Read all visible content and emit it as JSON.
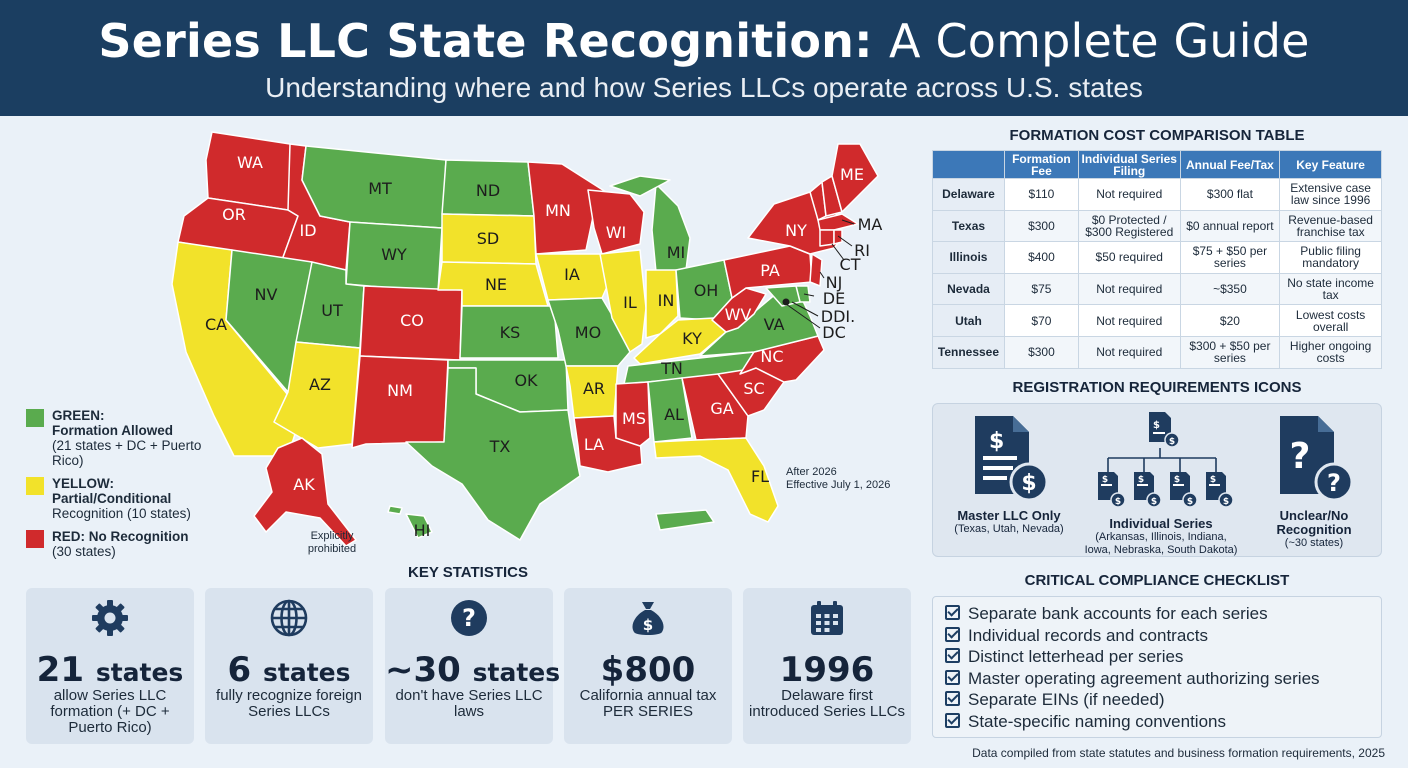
{
  "header": {
    "title_bold": "Series LLC State Recognition:",
    "title_light": "A Complete Guide",
    "subtitle": "Understanding where and how Series LLCs operate across U.S. states"
  },
  "colors": {
    "green": "#5aab4e",
    "yellow": "#f2e22a",
    "red": "#d02a2c",
    "header": "#1b3e61",
    "accent": "#3c78b8"
  },
  "map": {
    "labels": {
      "WA": "WA",
      "OR": "OR",
      "CA": "CA",
      "ID": "ID",
      "NV": "NV",
      "MT": "MT",
      "WY": "WY",
      "UT": "UT",
      "AZ": "AZ",
      "CO": "CO",
      "NM": "NM",
      "ND": "ND",
      "SD": "SD",
      "NE": "NE",
      "KS": "KS",
      "OK": "OK",
      "TX": "TX",
      "MN": "MN",
      "IA": "IA",
      "MO": "MO",
      "AR": "AR",
      "LA": "LA",
      "WI": "WI",
      "IL": "IL",
      "MI": "MI",
      "IN": "IN",
      "OH": "OH",
      "KY": "KY",
      "TN": "TN",
      "MS": "MS",
      "AL": "AL",
      "GA": "GA",
      "FL": "FL",
      "SC": "SC",
      "NC": "NC",
      "VA": "VA",
      "WV": "WV",
      "PA": "PA",
      "NY": "NY",
      "ME": "ME",
      "MA": "MA",
      "RI": "RI",
      "CT": "CT",
      "NJ": "NJ",
      "DE": "DE",
      "DDI": "DDI.",
      "DC": "DC",
      "AK": "AK",
      "HI": "HI"
    },
    "note_ak": "Explicitly prohibited",
    "note_fl_1": "After 2026",
    "note_fl_2": "Effective July 1, 2026"
  },
  "legend": [
    {
      "title": "GREEN:",
      "title2": "Formation Allowed",
      "desc": "(21 states + DC + Puerto Rico)",
      "color": "#5aab4e"
    },
    {
      "title": "YELLOW:",
      "title2": "Partial/Conditional",
      "desc": "Recognition (10 states)",
      "color": "#f2e22a"
    },
    {
      "title": "RED: No Recognition",
      "title2": "",
      "desc": "(30 states)",
      "color": "#d02a2c"
    }
  ],
  "stats": {
    "title": "KEY STATISTICS",
    "items": [
      {
        "big": "21",
        "unit": "states",
        "desc": "allow Series LLC formation (+ DC + Puerto Rico)",
        "icon": "gear-icon"
      },
      {
        "big": "6",
        "unit": "states",
        "desc": "fully recognize foreign Series LLCs",
        "icon": "globe-icon"
      },
      {
        "big": "~30",
        "unit": "states",
        "desc": "don't have Series LLC laws",
        "icon": "question-icon"
      },
      {
        "big": "$800",
        "unit": "",
        "desc": "California annual tax PER SERIES",
        "icon": "money-bag-icon"
      },
      {
        "big": "1996",
        "unit": "",
        "desc": "Delaware first introduced Series LLCs",
        "icon": "calendar-icon"
      }
    ]
  },
  "cost_table": {
    "title": "FORMATION COST COMPARISON TABLE",
    "headers": [
      "",
      "Formation Fee",
      "Individual Series Filing",
      "Annual Fee/Tax",
      "Key Feature"
    ],
    "rows": [
      [
        "Delaware",
        "$110",
        "Not required",
        "$300 flat",
        "Extensive case law since 1996"
      ],
      [
        "Texas",
        "$300",
        "$0 Protected / $300 Registered",
        "$0 annual report",
        "Revenue-based franchise tax"
      ],
      [
        "Illinois",
        "$400",
        "$50 required",
        "$75 + $50 per series",
        "Public filing mandatory"
      ],
      [
        "Nevada",
        "$75",
        "Not required",
        "~$350",
        "No state income tax"
      ],
      [
        "Utah",
        "$70",
        "Not required",
        "$20",
        "Lowest costs overall"
      ],
      [
        "Tennessee",
        "$300",
        "Not required",
        "$300 + $50 per series",
        "Higher ongoing costs"
      ]
    ]
  },
  "registration": {
    "title": "REGISTRATION REQUIREMENTS ICONS",
    "items": [
      {
        "label": "Master LLC Only",
        "sub": "(Texas, Utah, Nevada)"
      },
      {
        "label": "Individual Series",
        "sub": "(Arkansas, Illinois, Indiana, Iowa, Nebraska, South Dakota)"
      },
      {
        "label": "Unclear/No Recognition",
        "sub": "(~30 states)"
      }
    ]
  },
  "checklist": {
    "title": "CRITICAL COMPLIANCE CHECKLIST",
    "items": [
      "Separate bank accounts for each series",
      "Individual records and contracts",
      "Distinct letterhead per series",
      "Master operating agreement authorizing series",
      "Separate EINs (if needed)",
      "State-specific naming conventions"
    ]
  },
  "footer": "Data compiled from state statutes and business formation requirements, 2025"
}
